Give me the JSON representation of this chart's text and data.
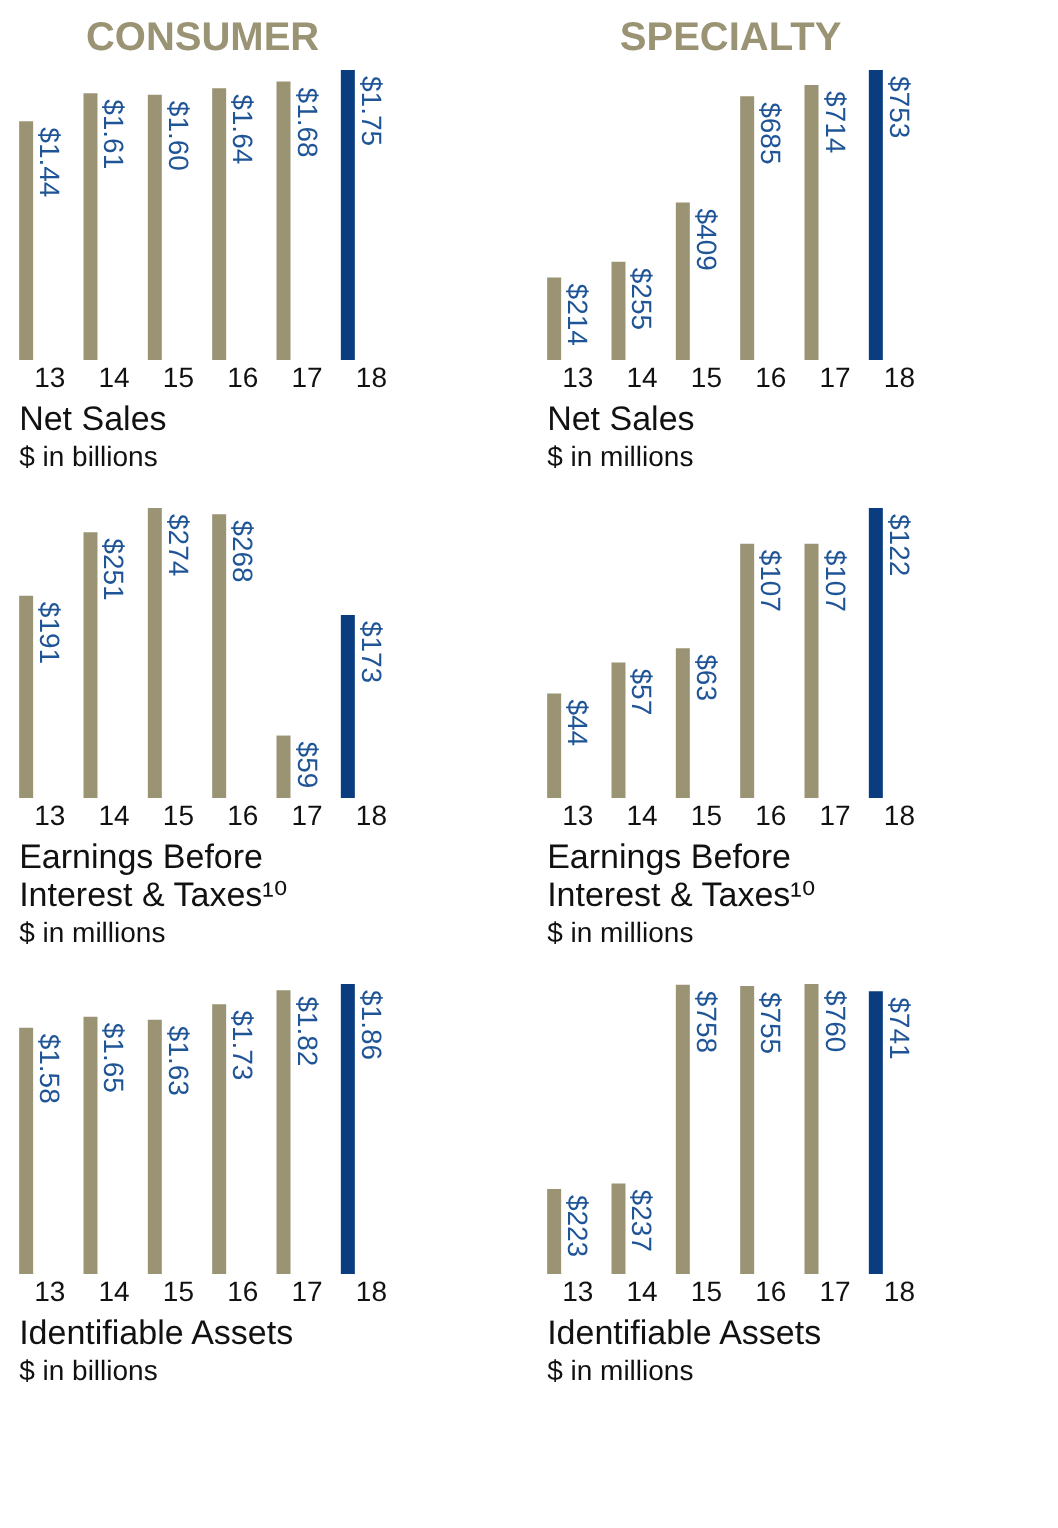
{
  "chart_data": [
    {
      "type": "bar",
      "title": "Net Sales",
      "subtitle": "$ in billions",
      "annotations": [
        "CONSUMER"
      ],
      "categories": [
        "13",
        "14",
        "15",
        "16",
        "17",
        "18"
      ],
      "values": [
        1.44,
        1.61,
        1.6,
        1.64,
        1.68,
        1.75
      ],
      "value_labels": [
        "$1.44",
        "$1.61",
        "$1.60",
        "$1.64",
        "$1.68",
        "$1.75"
      ],
      "colors": [
        "#9a9474",
        "#9a9474",
        "#9a9474",
        "#9a9474",
        "#9a9474",
        "#0a3d7f"
      ]
    },
    {
      "type": "bar",
      "title": "Net Sales",
      "subtitle": "$ in millions",
      "annotations": [
        "SPECIALTY"
      ],
      "categories": [
        "13",
        "14",
        "15",
        "16",
        "17",
        "18"
      ],
      "values": [
        214,
        255,
        409,
        685,
        714,
        753
      ],
      "value_labels": [
        "$214",
        "$255",
        "$409",
        "$685",
        "$714",
        "$753"
      ],
      "colors": [
        "#9a9474",
        "#9a9474",
        "#9a9474",
        "#9a9474",
        "#9a9474",
        "#0a3d7f"
      ]
    },
    {
      "type": "bar",
      "title": "Earnings Before Interest & Taxes¹⁰",
      "subtitle": "$ in millions",
      "categories": [
        "13",
        "14",
        "15",
        "16",
        "17",
        "18"
      ],
      "values": [
        191,
        251,
        274,
        268,
        59,
        173
      ],
      "value_labels": [
        "$191",
        "$251",
        "$274",
        "$268",
        "$59",
        "$173"
      ],
      "colors": [
        "#9a9474",
        "#9a9474",
        "#9a9474",
        "#9a9474",
        "#9a9474",
        "#0a3d7f"
      ]
    },
    {
      "type": "bar",
      "title": "Earnings Before Interest & Taxes¹⁰",
      "subtitle": "$ in millions",
      "categories": [
        "13",
        "14",
        "15",
        "16",
        "17",
        "18"
      ],
      "values": [
        44,
        57,
        63,
        107,
        107,
        122
      ],
      "value_labels": [
        "$44",
        "$57",
        "$63",
        "$107",
        "$107",
        "$122"
      ],
      "colors": [
        "#9a9474",
        "#9a9474",
        "#9a9474",
        "#9a9474",
        "#9a9474",
        "#0a3d7f"
      ]
    },
    {
      "type": "bar",
      "title": "Identifiable Assets",
      "subtitle": "$ in billions",
      "categories": [
        "13",
        "14",
        "15",
        "16",
        "17",
        "18"
      ],
      "values": [
        1.58,
        1.65,
        1.63,
        1.73,
        1.82,
        1.86
      ],
      "value_labels": [
        "$1.58",
        "$1.65",
        "$1.63",
        "$1.73",
        "$1.82",
        "$1.86"
      ],
      "colors": [
        "#9a9474",
        "#9a9474",
        "#9a9474",
        "#9a9474",
        "#9a9474",
        "#0a3d7f"
      ]
    },
    {
      "type": "bar",
      "title": "Identifiable Assets",
      "subtitle": "$ in millions",
      "categories": [
        "13",
        "14",
        "15",
        "16",
        "17",
        "18"
      ],
      "values": [
        223,
        237,
        758,
        755,
        760,
        741
      ],
      "value_labels": [
        "$223",
        "$237",
        "$758",
        "$755",
        "$760",
        "$741"
      ],
      "colors": [
        "#9a9474",
        "#9a9474",
        "#9a9474",
        "#9a9474",
        "#9a9474",
        "#0a3d7f"
      ]
    }
  ]
}
